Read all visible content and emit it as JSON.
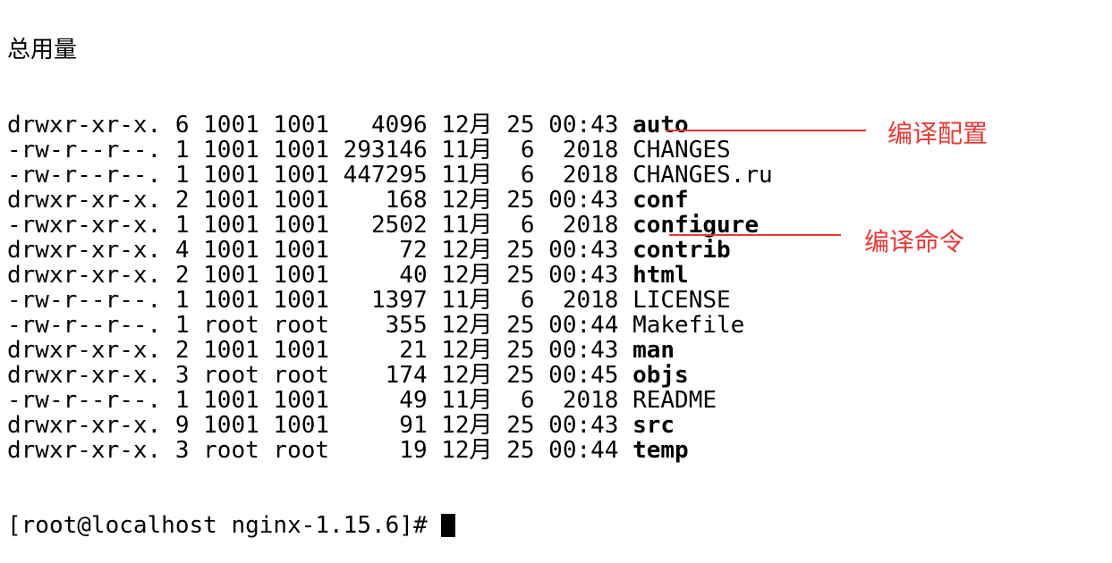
{
  "terminal": {
    "header_fragment": "总用量",
    "entries": [
      {
        "perm": "drwxr-xr-x.",
        "links": "6",
        "owner": "1001",
        "group": "1001",
        "size": "4096",
        "month": "12月",
        "day": "25",
        "time": "00:43",
        "name": "auto",
        "bold": true
      },
      {
        "perm": "-rw-r--r--.",
        "links": "1",
        "owner": "1001",
        "group": "1001",
        "size": "293146",
        "month": "11月",
        "day": "6",
        "time": "2018",
        "name": "CHANGES",
        "bold": false
      },
      {
        "perm": "-rw-r--r--.",
        "links": "1",
        "owner": "1001",
        "group": "1001",
        "size": "447295",
        "month": "11月",
        "day": "6",
        "time": "2018",
        "name": "CHANGES.ru",
        "bold": false
      },
      {
        "perm": "drwxr-xr-x.",
        "links": "2",
        "owner": "1001",
        "group": "1001",
        "size": "168",
        "month": "12月",
        "day": "25",
        "time": "00:43",
        "name": "conf",
        "bold": true
      },
      {
        "perm": "-rwxr-xr-x.",
        "links": "1",
        "owner": "1001",
        "group": "1001",
        "size": "2502",
        "month": "11月",
        "day": "6",
        "time": "2018",
        "name": "configure",
        "bold": true
      },
      {
        "perm": "drwxr-xr-x.",
        "links": "4",
        "owner": "1001",
        "group": "1001",
        "size": "72",
        "month": "12月",
        "day": "25",
        "time": "00:43",
        "name": "contrib",
        "bold": true
      },
      {
        "perm": "drwxr-xr-x.",
        "links": "2",
        "owner": "1001",
        "group": "1001",
        "size": "40",
        "month": "12月",
        "day": "25",
        "time": "00:43",
        "name": "html",
        "bold": true
      },
      {
        "perm": "-rw-r--r--.",
        "links": "1",
        "owner": "1001",
        "group": "1001",
        "size": "1397",
        "month": "11月",
        "day": "6",
        "time": "2018",
        "name": "LICENSE",
        "bold": false
      },
      {
        "perm": "-rw-r--r--.",
        "links": "1",
        "owner": "root",
        "group": "root",
        "size": "355",
        "month": "12月",
        "day": "25",
        "time": "00:44",
        "name": "Makefile",
        "bold": false
      },
      {
        "perm": "drwxr-xr-x.",
        "links": "2",
        "owner": "1001",
        "group": "1001",
        "size": "21",
        "month": "12月",
        "day": "25",
        "time": "00:43",
        "name": "man",
        "bold": true
      },
      {
        "perm": "drwxr-xr-x.",
        "links": "3",
        "owner": "root",
        "group": "root",
        "size": "174",
        "month": "12月",
        "day": "25",
        "time": "00:45",
        "name": "objs",
        "bold": true
      },
      {
        "perm": "-rw-r--r--.",
        "links": "1",
        "owner": "1001",
        "group": "1001",
        "size": "49",
        "month": "11月",
        "day": "6",
        "time": "2018",
        "name": "README",
        "bold": false
      },
      {
        "perm": "drwxr-xr-x.",
        "links": "9",
        "owner": "1001",
        "group": "1001",
        "size": "91",
        "month": "12月",
        "day": "25",
        "time": "00:43",
        "name": "src",
        "bold": true
      },
      {
        "perm": "drwxr-xr-x.",
        "links": "3",
        "owner": "root",
        "group": "root",
        "size": "19",
        "month": "12月",
        "day": "25",
        "time": "00:44",
        "name": "temp",
        "bold": true
      }
    ],
    "prompt": "[root@localhost nginx-1.15.6]# "
  },
  "annotations": {
    "configure_note": "编译配置",
    "make_note": "编译命令",
    "color": "#e53935"
  }
}
